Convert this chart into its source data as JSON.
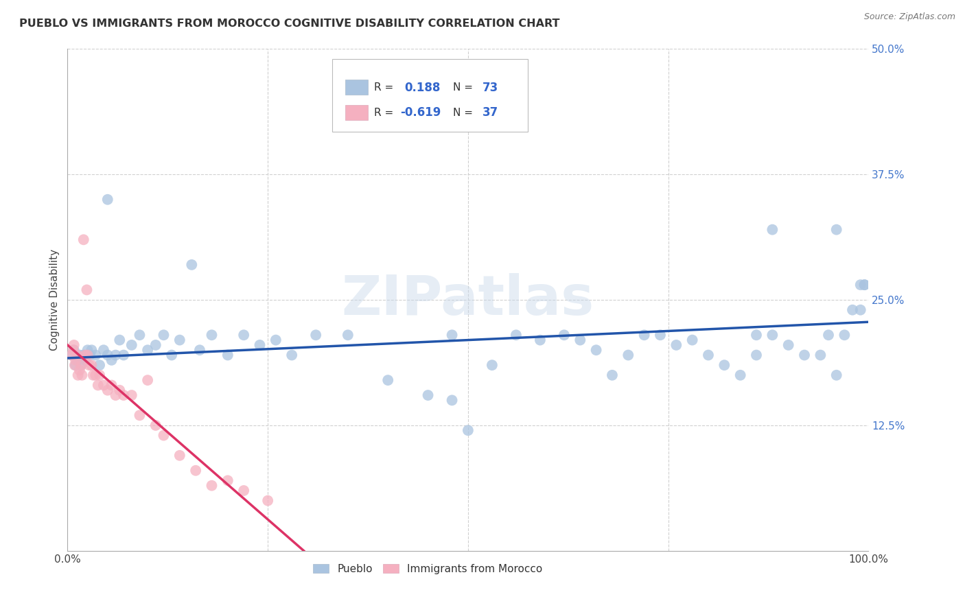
{
  "title": "PUEBLO VS IMMIGRANTS FROM MOROCCO COGNITIVE DISABILITY CORRELATION CHART",
  "source": "Source: ZipAtlas.com",
  "ylabel": "Cognitive Disability",
  "xlim": [
    0,
    1.0
  ],
  "ylim": [
    0,
    0.5
  ],
  "ytick_positions": [
    0.125,
    0.25,
    0.375,
    0.5
  ],
  "ytick_labels": [
    "12.5%",
    "25.0%",
    "37.5%",
    "50.0%"
  ],
  "background_color": "#ffffff",
  "watermark": "ZIPatlas",
  "r_pueblo": 0.188,
  "n_pueblo": 73,
  "r_morocco": -0.619,
  "n_morocco": 37,
  "blue_color": "#aac4e0",
  "pink_color": "#f5b0c0",
  "blue_line_color": "#2255aa",
  "pink_line_color": "#dd3366",
  "grid_color": "#d0d0d0",
  "pueblo_points_x": [
    0.005,
    0.008,
    0.01,
    0.012,
    0.015,
    0.017,
    0.02,
    0.022,
    0.025,
    0.028,
    0.03,
    0.035,
    0.04,
    0.045,
    0.05,
    0.055,
    0.06,
    0.065,
    0.07,
    0.08,
    0.09,
    0.1,
    0.11,
    0.12,
    0.13,
    0.14,
    0.155,
    0.165,
    0.18,
    0.2,
    0.22,
    0.24,
    0.26,
    0.28,
    0.31,
    0.35,
    0.4,
    0.45,
    0.48,
    0.5,
    0.53,
    0.56,
    0.59,
    0.62,
    0.64,
    0.66,
    0.68,
    0.7,
    0.72,
    0.74,
    0.76,
    0.78,
    0.8,
    0.82,
    0.84,
    0.86,
    0.88,
    0.9,
    0.92,
    0.94,
    0.95,
    0.96,
    0.97,
    0.98,
    0.99,
    0.995,
    0.05,
    0.48,
    0.86,
    0.88,
    0.96,
    0.99,
    0.995
  ],
  "pueblo_points_y": [
    0.195,
    0.2,
    0.185,
    0.19,
    0.195,
    0.185,
    0.195,
    0.19,
    0.2,
    0.195,
    0.2,
    0.195,
    0.185,
    0.2,
    0.195,
    0.19,
    0.195,
    0.21,
    0.195,
    0.205,
    0.215,
    0.2,
    0.205,
    0.215,
    0.195,
    0.21,
    0.285,
    0.2,
    0.215,
    0.195,
    0.215,
    0.205,
    0.21,
    0.195,
    0.215,
    0.215,
    0.17,
    0.155,
    0.215,
    0.12,
    0.185,
    0.215,
    0.21,
    0.215,
    0.21,
    0.2,
    0.175,
    0.195,
    0.215,
    0.215,
    0.205,
    0.21,
    0.195,
    0.185,
    0.175,
    0.195,
    0.215,
    0.205,
    0.195,
    0.195,
    0.215,
    0.175,
    0.215,
    0.24,
    0.24,
    0.265,
    0.35,
    0.15,
    0.215,
    0.32,
    0.32,
    0.265,
    0.265
  ],
  "morocco_points_x": [
    0.005,
    0.007,
    0.008,
    0.009,
    0.01,
    0.012,
    0.013,
    0.015,
    0.017,
    0.018,
    0.02,
    0.022,
    0.024,
    0.025,
    0.027,
    0.03,
    0.032,
    0.035,
    0.038,
    0.04,
    0.045,
    0.05,
    0.055,
    0.06,
    0.065,
    0.07,
    0.08,
    0.09,
    0.1,
    0.11,
    0.12,
    0.14,
    0.16,
    0.18,
    0.2,
    0.22,
    0.25
  ],
  "morocco_points_y": [
    0.195,
    0.2,
    0.205,
    0.185,
    0.19,
    0.195,
    0.175,
    0.18,
    0.185,
    0.175,
    0.31,
    0.195,
    0.26,
    0.195,
    0.185,
    0.185,
    0.175,
    0.175,
    0.165,
    0.175,
    0.165,
    0.16,
    0.165,
    0.155,
    0.16,
    0.155,
    0.155,
    0.135,
    0.17,
    0.125,
    0.115,
    0.095,
    0.08,
    0.065,
    0.07,
    0.06,
    0.05
  ],
  "blue_line_x": [
    0.0,
    1.0
  ],
  "blue_line_y_start": 0.192,
  "blue_line_y_end": 0.228,
  "pink_line_x": [
    0.0,
    0.295
  ],
  "pink_line_y_start": 0.205,
  "pink_line_y_end": 0.0
}
